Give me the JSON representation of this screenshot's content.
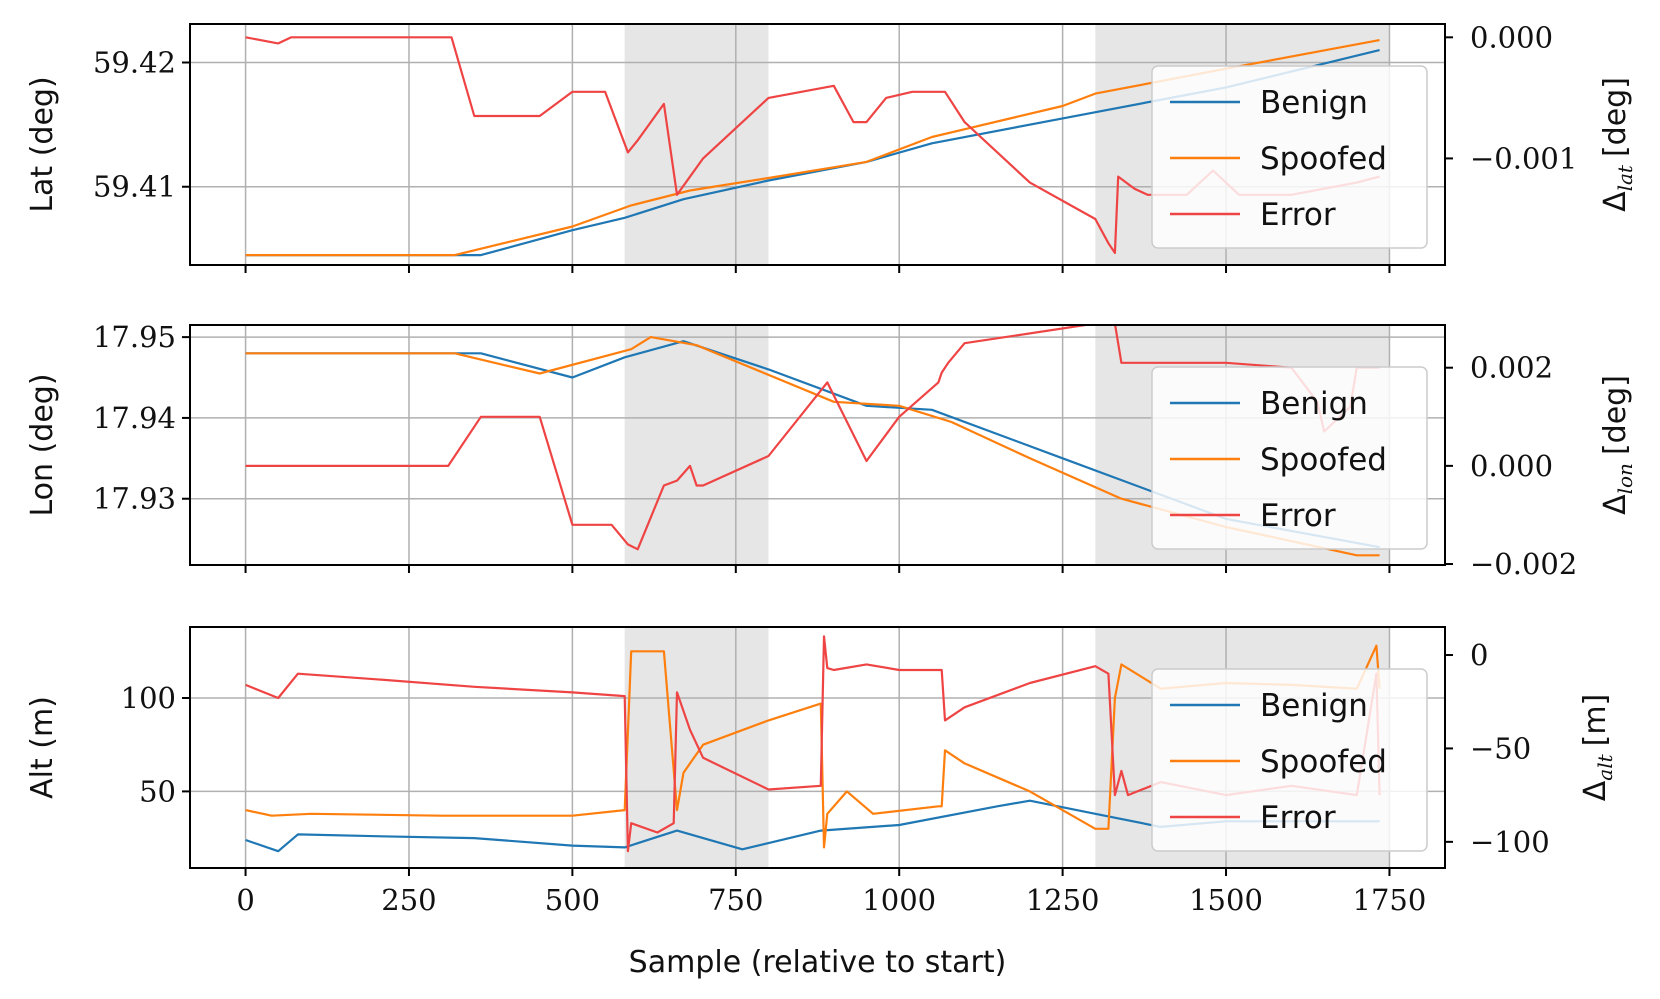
{
  "chart_data": {
    "type": "line",
    "xlabel": "Sample (relative to start)",
    "xlim": [
      -85,
      1835
    ],
    "xticks": [
      0,
      250,
      500,
      750,
      1000,
      1250,
      1500,
      1750
    ],
    "shaded_regions": [
      [
        580,
        800
      ],
      [
        1300,
        1750
      ]
    ],
    "legend": [
      "Benign",
      "Spoofed",
      "Error"
    ],
    "colors": {
      "benign": "#1f77b4",
      "spoofed": "#ff7f0e",
      "error": "#ef4444"
    },
    "panels": [
      {
        "id": "lat",
        "ylabel": "Lat (deg)",
        "ylim": [
          59.4037,
          59.4231
        ],
        "yticks": [
          59.41,
          59.42
        ],
        "right_ylabel_main": "Δ",
        "right_ylabel_sub": "lat",
        "right_ylabel_unit": "[deg]",
        "right_ylim": [
          -0.00188,
          0.00011
        ],
        "right_yticks": [
          0.0,
          -0.001
        ],
        "right_ytick_labels": [
          "0.000",
          "−0.001"
        ],
        "series": [
          {
            "name": "Benign",
            "x": [
              0,
              360,
              500,
              580,
              670,
              800,
              950,
              1050,
              1250,
              1500,
              1735
            ],
            "values": [
              59.4045,
              59.4045,
              59.4065,
              59.4075,
              59.409,
              59.4105,
              59.412,
              59.4135,
              59.4155,
              59.418,
              59.421
            ]
          },
          {
            "name": "Spoofed",
            "x": [
              0,
              320,
              500,
              590,
              680,
              800,
              950,
              1050,
              1250,
              1300,
              1500,
              1735
            ],
            "values": [
              59.4045,
              59.4045,
              59.4068,
              59.4085,
              59.4097,
              59.4107,
              59.412,
              59.414,
              59.4165,
              59.4175,
              59.4195,
              59.4218
            ]
          },
          {
            "name": "Error",
            "axis": "right",
            "x": [
              0,
              50,
              70,
              100,
              300,
              315,
              350,
              450,
              500,
              550,
              585,
              600,
              640,
              660,
              700,
              800,
              900,
              930,
              950,
              980,
              1020,
              1070,
              1100,
              1200,
              1300,
              1320,
              1330,
              1335,
              1360,
              1380,
              1440,
              1480,
              1520,
              1600,
              1700,
              1735
            ],
            "values": [
              0.0,
              -5e-05,
              0.0,
              0.0,
              0.0,
              0.0,
              -0.00065,
              -0.00065,
              -0.00045,
              -0.00045,
              -0.00095,
              -0.00085,
              -0.00055,
              -0.0013,
              -0.001,
              -0.0005,
              -0.0004,
              -0.0007,
              -0.0007,
              -0.0005,
              -0.00045,
              -0.00045,
              -0.0007,
              -0.0012,
              -0.0015,
              -0.0017,
              -0.00178,
              -0.00115,
              -0.00125,
              -0.0013,
              -0.0013,
              -0.0011,
              -0.0013,
              -0.0013,
              -0.0012,
              -0.00115
            ]
          }
        ]
      },
      {
        "id": "lon",
        "ylabel": "Lon (deg)",
        "ylim": [
          17.9218,
          17.9515
        ],
        "yticks": [
          17.93,
          17.94,
          17.95
        ],
        "right_ylabel_main": "Δ",
        "right_ylabel_sub": "lon",
        "right_ylabel_unit": "[deg]",
        "right_ylim": [
          -0.00202,
          0.00287
        ],
        "right_yticks": [
          0.002,
          0.0,
          -0.002
        ],
        "right_ytick_labels": [
          "0.002",
          "0.000",
          "−0.002"
        ],
        "series": [
          {
            "name": "Benign",
            "x": [
              0,
              360,
              500,
              580,
              670,
              800,
              950,
              1050,
              1250,
              1500,
              1735
            ],
            "values": [
              17.948,
              17.948,
              17.945,
              17.9475,
              17.9495,
              17.946,
              17.9415,
              17.941,
              17.935,
              17.9275,
              17.924
            ]
          },
          {
            "name": "Spoofed",
            "x": [
              0,
              320,
              450,
              590,
              620,
              690,
              900,
              1000,
              1080,
              1200,
              1340,
              1500,
              1700,
              1735
            ],
            "values": [
              17.948,
              17.948,
              17.9455,
              17.9485,
              17.95,
              17.949,
              17.942,
              17.9415,
              17.9395,
              17.935,
              17.93,
              17.9265,
              17.923,
              17.923
            ]
          },
          {
            "name": "Error",
            "axis": "right",
            "x": [
              0,
              310,
              360,
              450,
              500,
              560,
              585,
              600,
              640,
              660,
              680,
              690,
              700,
              800,
              890,
              950,
              1000,
              1060,
              1065,
              1075,
              1100,
              1300,
              1330,
              1340,
              1380,
              1400,
              1500,
              1600,
              1640,
              1650,
              1690,
              1700,
              1735
            ],
            "values": [
              0.0,
              0.0,
              0.001,
              0.001,
              -0.0012,
              -0.0012,
              -0.0016,
              -0.0017,
              -0.0004,
              -0.0003,
              0.0,
              -0.0004,
              -0.0004,
              0.0002,
              0.0017,
              0.0001,
              0.001,
              0.0017,
              0.0019,
              0.0021,
              0.0025,
              0.0029,
              0.0029,
              0.0021,
              0.0021,
              0.0021,
              0.0021,
              0.002,
              0.0013,
              0.0007,
              0.0012,
              0.002,
              0.002
            ]
          }
        ]
      },
      {
        "id": "alt",
        "ylabel": "Alt (m)",
        "ylim": [
          9,
          138
        ],
        "yticks": [
          50,
          100
        ],
        "right_ylabel_main": "Δ",
        "right_ylabel_sub": "alt",
        "right_ylabel_unit": "[m]",
        "right_ylim": [
          -114,
          15
        ],
        "right_yticks": [
          0,
          -50,
          -100
        ],
        "right_ytick_labels": [
          "0",
          "−50",
          "−100"
        ],
        "series": [
          {
            "name": "Benign",
            "x": [
              0,
              50,
              80,
              200,
              350,
              500,
              580,
              660,
              760,
              880,
              1000,
              1150,
              1200,
              1300,
              1400,
              1500,
              1735
            ],
            "values": [
              24,
              18,
              27,
              26,
              25,
              21,
              20,
              29,
              19,
              29,
              32,
              42,
              45,
              38,
              31,
              34,
              34
            ]
          },
          {
            "name": "Spoofed",
            "x": [
              0,
              40,
              100,
              300,
              500,
              580,
              590,
              640,
              660,
              670,
              700,
              800,
              880,
              885,
              890,
              920,
              960,
              1060,
              1065,
              1070,
              1100,
              1200,
              1300,
              1320,
              1330,
              1340,
              1400,
              1500,
              1600,
              1700,
              1730,
              1735
            ],
            "values": [
              40,
              37,
              38,
              37,
              37,
              40,
              125,
              125,
              40,
              60,
              75,
              88,
              97,
              20,
              38,
              50,
              38,
              42,
              42,
              72,
              65,
              50,
              30,
              30,
              100,
              118,
              105,
              108,
              107,
              105,
              128,
              105
            ]
          },
          {
            "name": "Error",
            "axis": "right",
            "x": [
              0,
              50,
              80,
              200,
              350,
              500,
              580,
              585,
              590,
              630,
              655,
              660,
              680,
              700,
              800,
              880,
              885,
              890,
              900,
              950,
              1000,
              1065,
              1070,
              1100,
              1200,
              1300,
              1320,
              1330,
              1340,
              1350,
              1400,
              1500,
              1600,
              1700,
              1730,
              1735
            ],
            "values": [
              -16,
              -23,
              -10,
              -13,
              -17,
              -20,
              -22,
              -105,
              -90,
              -95,
              -90,
              -20,
              -40,
              -55,
              -72,
              -70,
              10,
              -7,
              -8,
              -5,
              -8,
              -8,
              -35,
              -28,
              -15,
              -6,
              -10,
              -75,
              -62,
              -75,
              -68,
              -75,
              -70,
              -75,
              -10,
              -75
            ]
          }
        ]
      }
    ]
  }
}
